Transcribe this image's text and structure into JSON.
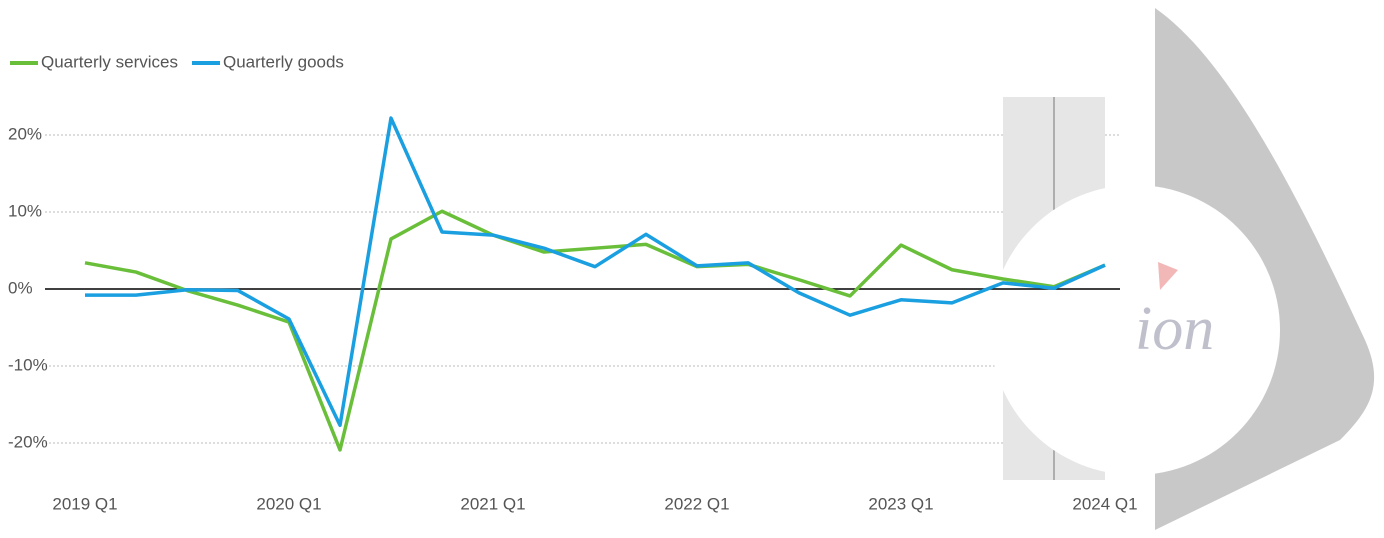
{
  "watermark": "ion",
  "chart_data": {
    "type": "line",
    "categories": [
      "2019 Q1",
      null,
      null,
      null,
      "2020 Q1",
      null,
      null,
      null,
      "2021 Q1",
      null,
      null,
      null,
      "2022 Q1",
      null,
      null,
      null,
      "2023 Q1",
      null,
      null,
      null,
      "2024 Q1"
    ],
    "series": [
      {
        "name": "Quarterly services",
        "color": "#6abf3a",
        "values": [
          3.4,
          2.2,
          -0.2,
          -2.1,
          -4.3,
          -20.9,
          6.5,
          10.1,
          7.0,
          4.8,
          5.3,
          5.8,
          2.9,
          3.2,
          1.2,
          -0.9,
          5.7,
          2.5,
          1.3,
          0.3,
          3.1
        ]
      },
      {
        "name": "Quarterly goods",
        "color": "#1a9fe0",
        "values": [
          -0.8,
          -0.8,
          -0.1,
          -0.2,
          -3.9,
          -17.7,
          22.2,
          7.4,
          7.0,
          5.3,
          2.9,
          7.1,
          3.0,
          3.4,
          -0.5,
          -3.4,
          -1.4,
          -1.8,
          0.8,
          0.1,
          3.1
        ]
      }
    ],
    "ylim": [
      -25,
      25
    ],
    "yticks": [
      {
        "value": -20,
        "label": "-20%"
      },
      {
        "value": -10,
        "label": "-10%"
      },
      {
        "value": 0,
        "label": "0%"
      },
      {
        "value": 10,
        "label": "10%"
      },
      {
        "value": 20,
        "label": "20%"
      }
    ],
    "grid": true,
    "legend": "top-left"
  }
}
